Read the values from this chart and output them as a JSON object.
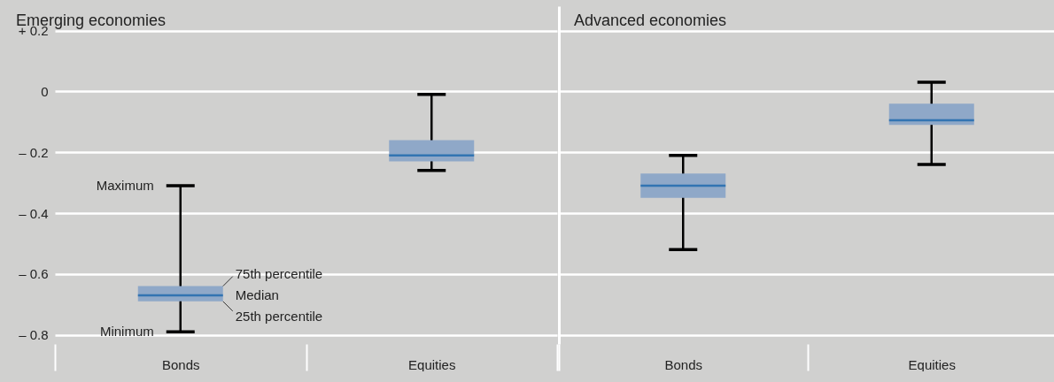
{
  "chart_data": [
    {
      "type": "box",
      "title": "Emerging economies",
      "categories": [
        "Bonds",
        "Equities"
      ],
      "boxes": [
        {
          "low": -0.79,
          "q1": -0.69,
          "median": -0.67,
          "q3": -0.64,
          "high": -0.31
        },
        {
          "low": -0.26,
          "q1": -0.23,
          "median": -0.21,
          "q3": -0.16,
          "high": -0.01
        }
      ],
      "color": "#8fa8c8",
      "ylim": [
        -0.83,
        0.28
      ],
      "yticks": [
        {
          "value": -0.8,
          "label": "– 0.8"
        },
        {
          "value": -0.6,
          "label": "– 0.6"
        },
        {
          "value": -0.4,
          "label": "– 0.4"
        },
        {
          "value": -0.2,
          "label": "– 0.2"
        },
        0,
        {
          "value": 0.2,
          "label": "+ 0.2"
        }
      ],
      "grid": "y",
      "annotations": [
        {
          "text": "Maximum",
          "x": "Bonds",
          "y": -0.31
        },
        "75th percentile",
        "Median",
        "25th percentile",
        {
          "text": "Minimum",
          "x": "Bonds",
          "y": -0.79
        }
      ]
    },
    {
      "type": "box",
      "title": "Advanced economies",
      "categories": [
        "Bonds",
        "Equities"
      ],
      "boxes": [
        {
          "low": -0.52,
          "q1": -0.35,
          "median": -0.31,
          "q3": -0.27,
          "high": -0.21
        },
        {
          "low": -0.24,
          "q1": -0.11,
          "median": -0.095,
          "q3": -0.04,
          "high": 0.03
        }
      ],
      "color": "#8fa8c8",
      "ylim": [
        -0.83,
        0.28
      ],
      "yticks": [
        {
          "value": -0.8,
          "label": null
        },
        {
          "value": -0.6,
          "label": null
        },
        {
          "value": -0.4,
          "label": null
        },
        {
          "value": -0.2,
          "label": null
        },
        {
          "value": 0,
          "label": null
        },
        {
          "value": 0.2,
          "label": null
        }
      ],
      "grid": "y",
      "tick_labels": "x"
    }
  ]
}
